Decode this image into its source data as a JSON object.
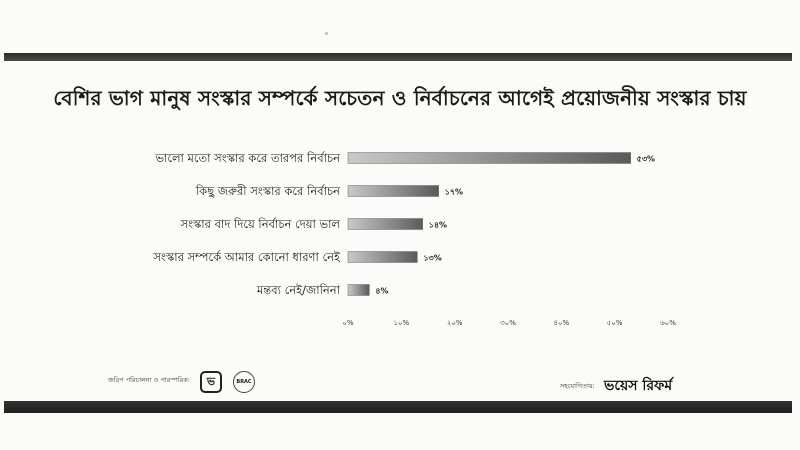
{
  "title": "বেশির ভাগ মানুষ সংস্কার সম্পর্কে সচেতন ও নির্বাচনের আগেই প্রয়োজনীয় সংস্কার চায়",
  "chart_data": {
    "type": "bar",
    "orientation": "horizontal",
    "title": "বেশির ভাগ মানুষ সংস্কার সম্পর্কে সচেতন ও নির্বাচনের আগেই প্রয়োজনীয় সংস্কার চায়",
    "categories": [
      "ভালো মতো সংস্কার করে তারপর নির্বাচন",
      "কিছু জরুরী সংস্কার করে নির্বাচন",
      "সংস্কার বাদ দিয়ে নির্বাচন দেয়া ভাল",
      "সংস্কার সম্পর্কে আমার কোনো ধারণা নেই",
      "মন্তব্য নেই/জানিনা"
    ],
    "values": [
      53,
      17,
      14,
      13,
      4
    ],
    "value_labels": [
      "৫৩%",
      "১৭%",
      "১৪%",
      "১৩%",
      "৪%"
    ],
    "x_ticks": [
      "০%",
      "১০%",
      "২০%",
      "৩০%",
      "৪০%",
      "৫০%",
      "৬০%"
    ],
    "xlim": [
      0,
      60
    ],
    "grid": false,
    "legend": "none"
  },
  "footer": {
    "left_label": "জরিপ পরিচালনা ও পারস্পরিক:",
    "logo1_text": "ভ",
    "logo2_text": "BRAC",
    "right_label": "সহযোগিতায়:",
    "right_logo_text": "ভয়েস রিফর্ম"
  },
  "colors": {
    "bar_dark": "#555555",
    "bar_light": "#d2d2d2",
    "rule": "#2a2a2a"
  }
}
